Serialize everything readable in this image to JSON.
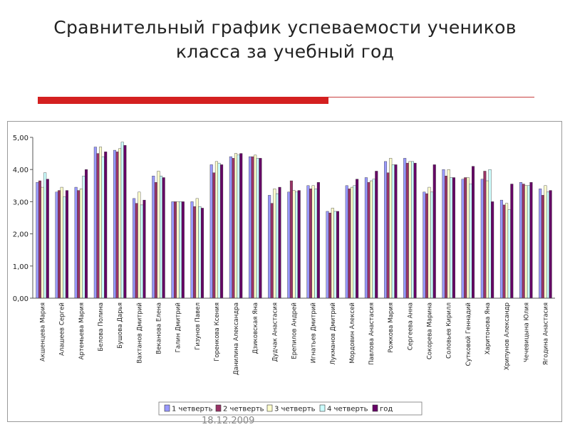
{
  "slide": {
    "title_line1": "Сравнительный график успеваемости учеников",
    "title_line2": "класса за учебный год",
    "date": "18.12.2009"
  },
  "colors": {
    "accent_red": "#d42020"
  },
  "chart_data": {
    "type": "bar",
    "ylim": [
      0,
      5
    ],
    "yticks": [
      "0,00",
      "1,00",
      "2,00",
      "3,00",
      "4,00",
      "5,00"
    ],
    "grid": false,
    "legend_position": "bottom",
    "categories": [
      "Акшенцева Мария",
      "Алашеев Сергей",
      "Артемьева Мария",
      "Белова Полина",
      "Бушова Дарья",
      "Вахтанов Дмитрий",
      "Веканова Елена",
      "Галин Дмитрий",
      "Гизунов Павел",
      "Горенкова Ксения",
      "Данилина Александра",
      "Дзиковская Яна",
      "Дудчак Анастасия",
      "Ерепилов Андрей",
      "Игнатьев Дмитрий",
      "Лукманов Дмитрий",
      "Мордовин Алексей",
      "Павлова Анастасия",
      "Рожкова Мария",
      "Сергеева Анна",
      "Сокорева Марина",
      "Соловьев Кирилл",
      "Сутковой Геннадий",
      "Харитонова Яна",
      "Хрипунов Александр",
      "Чечевицына Юлия",
      "Ягодина Анастасия"
    ],
    "series": [
      {
        "name": "1 четверть",
        "color": "#9999ff",
        "values": [
          3.6,
          3.3,
          3.45,
          4.7,
          4.6,
          3.1,
          3.8,
          3.0,
          3.0,
          4.15,
          4.4,
          4.4,
          3.2,
          3.3,
          3.5,
          2.7,
          3.5,
          3.75,
          4.25,
          4.35,
          3.3,
          4.0,
          3.7,
          3.7,
          3.05,
          3.6,
          3.4
        ]
      },
      {
        "name": "2 четверть",
        "color": "#993366",
        "values": [
          3.65,
          3.35,
          3.35,
          4.5,
          4.55,
          2.95,
          3.6,
          3.0,
          2.85,
          3.9,
          4.35,
          4.4,
          2.95,
          3.65,
          3.4,
          2.65,
          3.4,
          3.6,
          3.9,
          4.2,
          3.25,
          3.8,
          3.75,
          3.95,
          2.9,
          3.55,
          3.2
        ]
      },
      {
        "name": "3 четверть",
        "color": "#ffffcc",
        "values": [
          3.45,
          3.45,
          3.4,
          4.7,
          4.65,
          3.3,
          3.95,
          3.0,
          3.1,
          4.25,
          4.5,
          4.45,
          3.4,
          3.35,
          3.5,
          2.8,
          3.45,
          3.65,
          4.35,
          4.25,
          3.45,
          4.0,
          3.75,
          3.65,
          2.95,
          3.5,
          3.5
        ]
      },
      {
        "name": "4 четверть",
        "color": "#ccffff",
        "values": [
          3.9,
          3.15,
          3.8,
          4.4,
          4.85,
          2.9,
          3.8,
          3.0,
          2.85,
          4.2,
          4.45,
          4.35,
          3.25,
          3.3,
          3.4,
          2.7,
          3.5,
          3.7,
          4.15,
          4.25,
          3.3,
          3.75,
          3.55,
          4.0,
          2.75,
          3.5,
          3.3
        ]
      },
      {
        "name": "год",
        "color": "#660066",
        "values": [
          3.7,
          3.35,
          4.0,
          4.55,
          4.75,
          3.05,
          3.75,
          3.0,
          2.8,
          4.15,
          4.5,
          4.35,
          3.45,
          3.35,
          3.6,
          2.7,
          3.7,
          3.95,
          4.15,
          4.2,
          4.15,
          3.75,
          4.1,
          3.0,
          3.55,
          3.6,
          3.35
        ]
      }
    ]
  }
}
